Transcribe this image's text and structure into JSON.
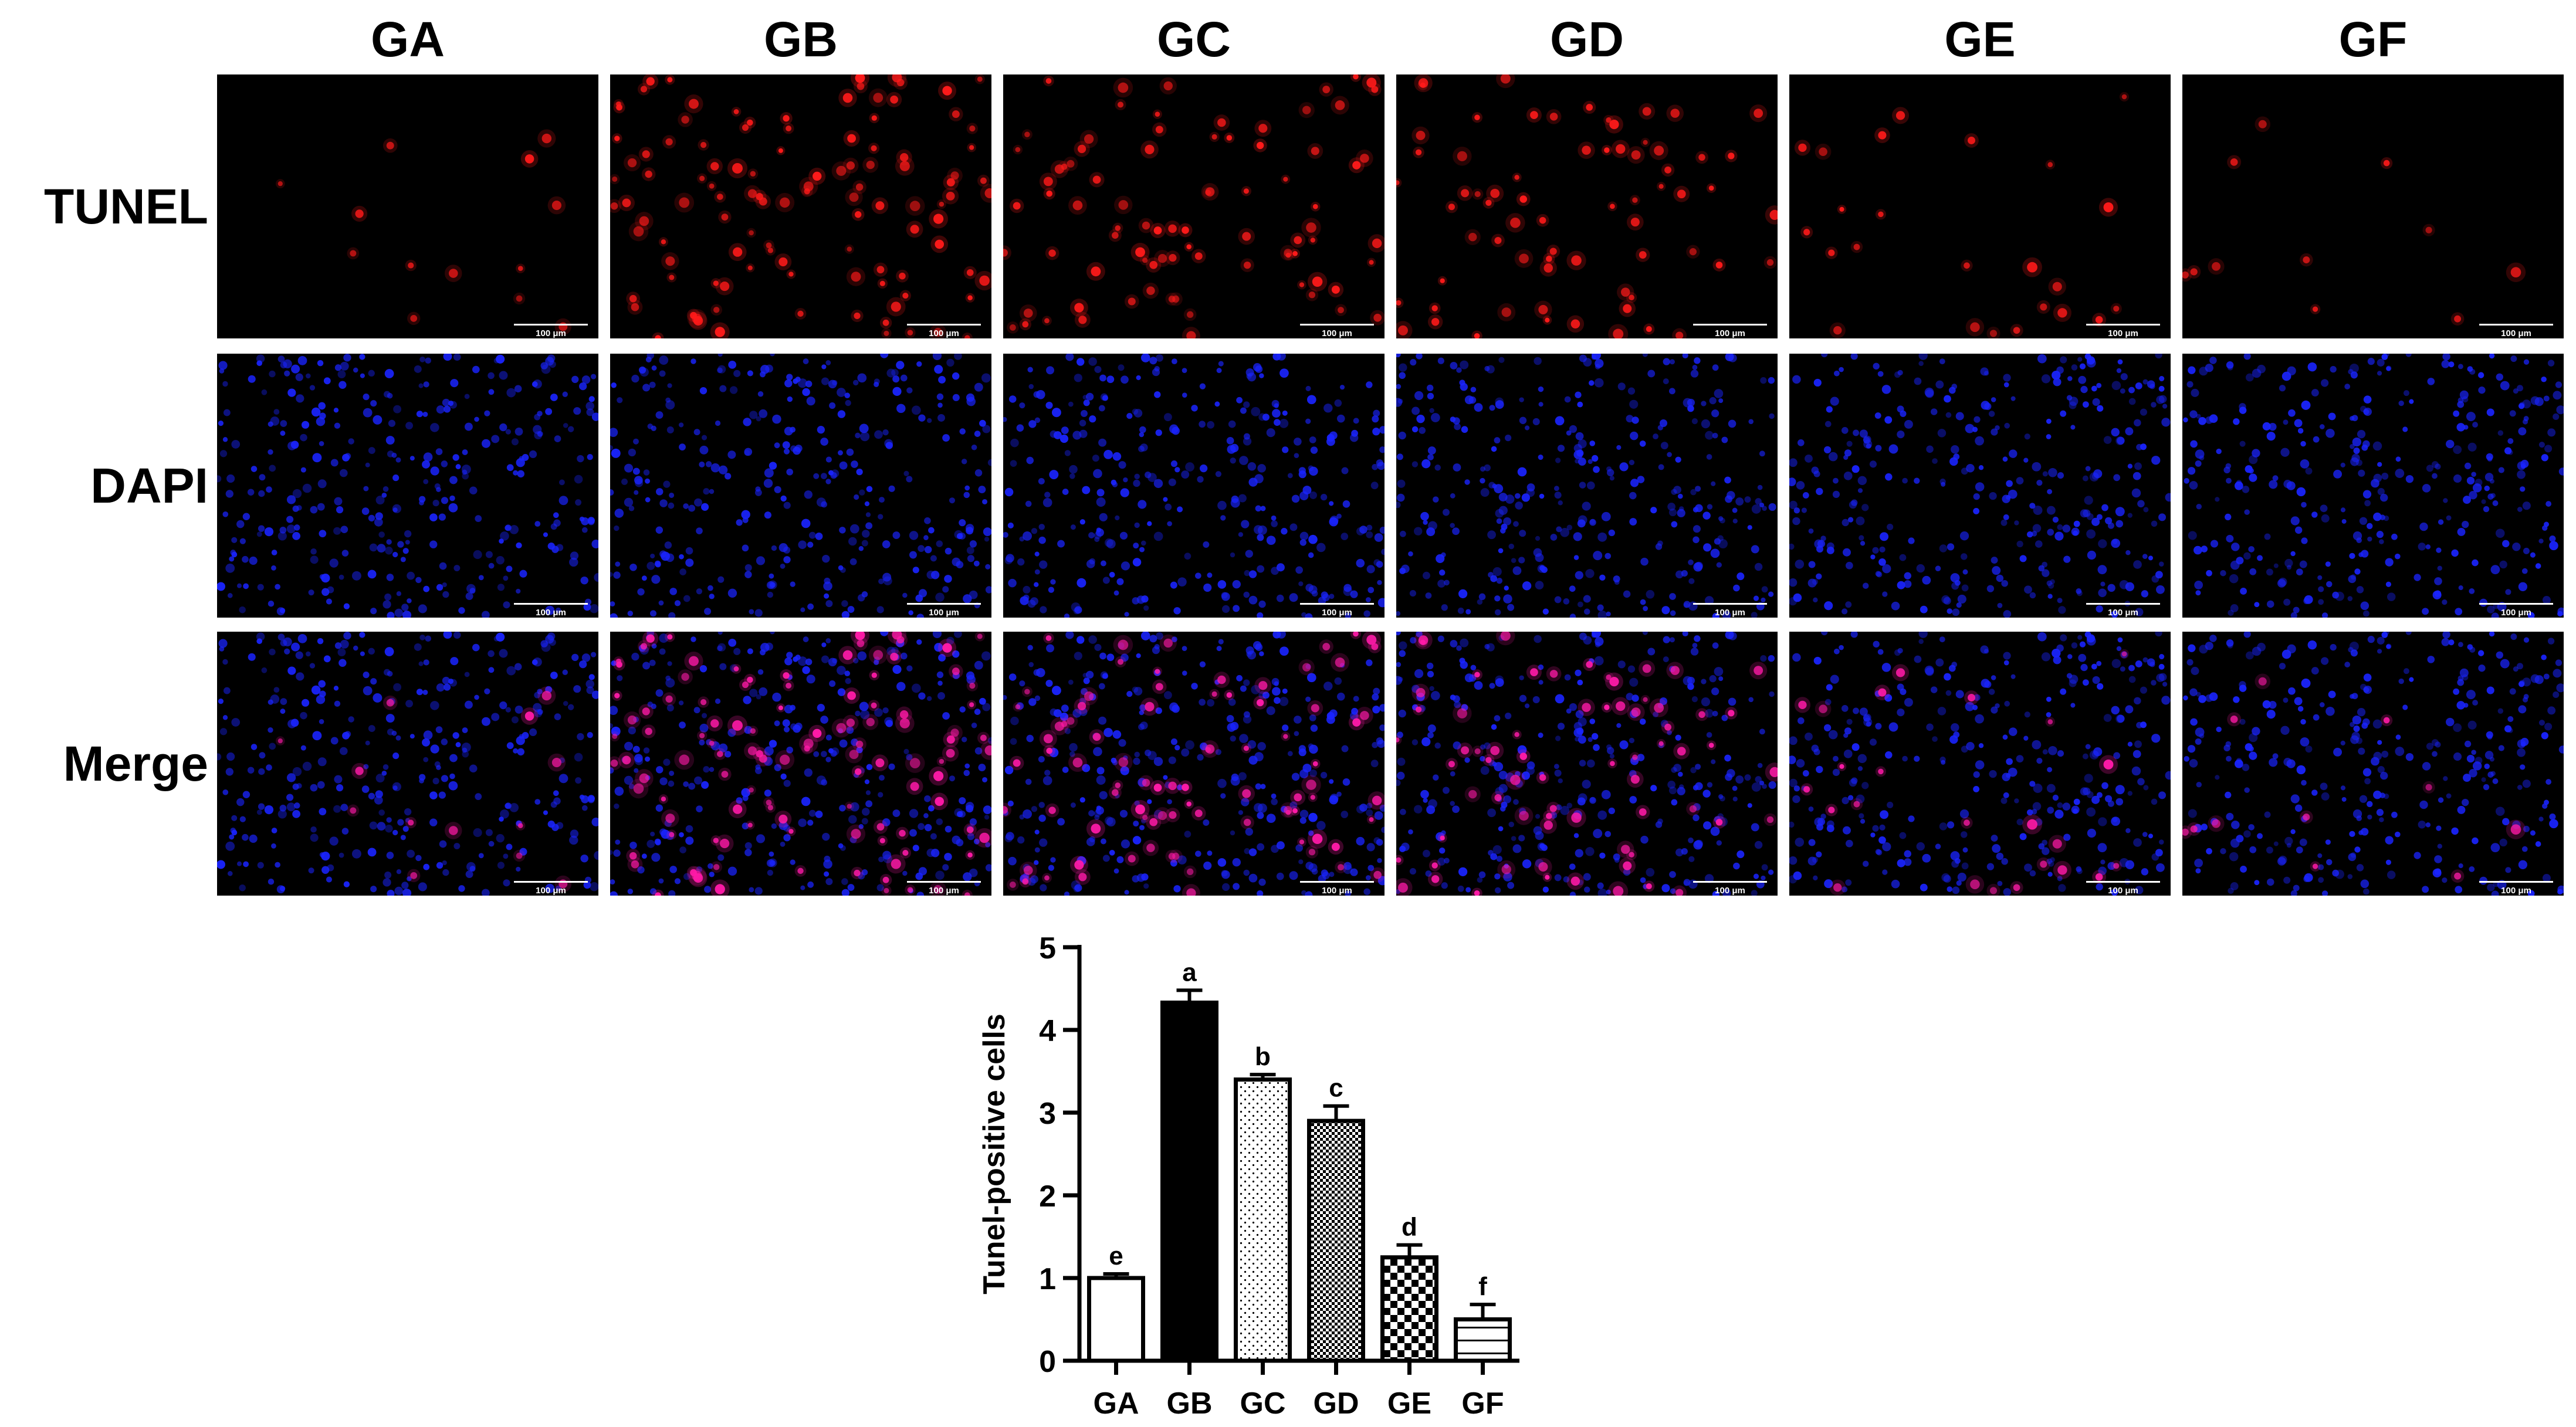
{
  "groups": [
    "GA",
    "GB",
    "GC",
    "GD",
    "GE",
    "GF"
  ],
  "rows": [
    {
      "label": "TUNEL",
      "stain": "tunel"
    },
    {
      "label": "DAPI",
      "stain": "dapi"
    },
    {
      "label": "Merge",
      "stain": "merge"
    }
  ],
  "scale_bar": "100 μm",
  "colors": {
    "tunel": "#ff1a1a",
    "dapi": "#1a24ff",
    "merge": "#ff1aa8",
    "background": "#000000"
  },
  "tunel_density": [
    0.12,
    1.0,
    0.75,
    0.62,
    0.22,
    0.1
  ],
  "chart_data": {
    "type": "bar",
    "categories": [
      "GA",
      "GB",
      "GC",
      "GD",
      "GE",
      "GF"
    ],
    "values": [
      1.0,
      4.33,
      3.4,
      2.9,
      1.25,
      0.5
    ],
    "errors": [
      0.05,
      0.15,
      0.06,
      0.18,
      0.15,
      0.18
    ],
    "significance": [
      "e",
      "a",
      "b",
      "c",
      "d",
      "f"
    ],
    "fill_patterns": [
      "white",
      "black",
      "dots",
      "fine-checker",
      "coarse-checker",
      "horizontal-lines"
    ],
    "title": "",
    "xlabel": "",
    "ylabel": "Tunel-positive cells",
    "ylim": [
      0,
      5
    ],
    "yticks": [
      "0",
      "1",
      "2",
      "3",
      "4",
      "5"
    ],
    "grid": false,
    "legend": "none"
  }
}
